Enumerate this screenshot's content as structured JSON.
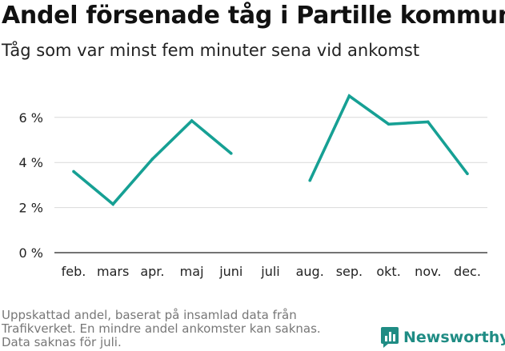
{
  "header": {
    "title": "Andel försenade tåg i Partille kommun",
    "subtitle": "Tåg som var minst fem minuter sena vid ankomst"
  },
  "footnote": {
    "lines": [
      "Uppskattad andel, baserat på insamlad data från",
      "Trafikverket. En mindre andel ankomster kan saknas.",
      "Data saknas för juli."
    ]
  },
  "brand": {
    "name": "Newsworthy",
    "icon": "bar-chart-badge-icon",
    "color": "#1f8c84"
  },
  "chart_data": {
    "type": "line",
    "title": "Andel försenade tåg i Partille kommun",
    "subtitle": "Tåg som var minst fem minuter sena vid ankomst",
    "xlabel": "",
    "ylabel": "",
    "categories": [
      "feb.",
      "mars",
      "apr.",
      "maj",
      "juni",
      "juli",
      "aug.",
      "sep.",
      "okt.",
      "nov.",
      "dec."
    ],
    "series": [
      {
        "values": [
          3.6,
          2.15,
          4.15,
          5.85,
          4.4,
          null,
          3.2,
          6.95,
          5.7,
          5.8,
          3.5
        ],
        "color": "#16a094"
      }
    ],
    "y_ticks": [
      0,
      2,
      4,
      6
    ],
    "y_tick_labels": [
      "0 %",
      "2 %",
      "4 %",
      "6 %"
    ],
    "ylim": [
      0,
      7.5
    ],
    "grid": true,
    "legend": "none"
  }
}
